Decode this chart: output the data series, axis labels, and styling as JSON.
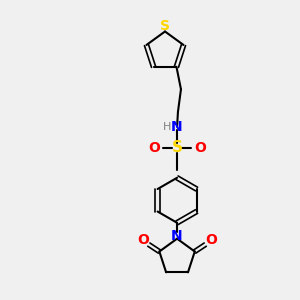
{
  "background_color": "#f0f0f0",
  "atom_colors": {
    "C": "#000000",
    "H": "#808080",
    "N": "#0000FF",
    "O": "#FF0000",
    "S_sulfonamide": "#FFD700",
    "S_thiophene": "#FFD700"
  },
  "figsize": [
    3.0,
    3.0
  ],
  "dpi": 100
}
